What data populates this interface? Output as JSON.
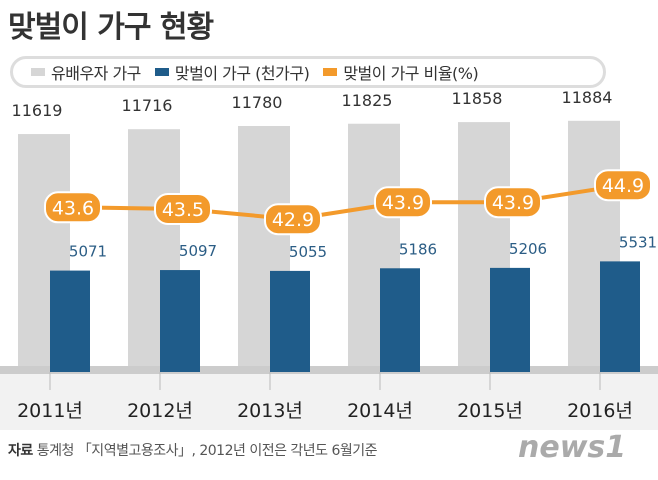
{
  "title": "맞벌이 가구 현황",
  "legend": [
    {
      "label": "유배우자 가구",
      "color": "#d6d6d6"
    },
    {
      "label": "맞벌이 가구 (천가구)",
      "color": "#1f5c8a"
    },
    {
      "label": "맞벌이 가구 비율(%)",
      "color": "#f39a2b"
    }
  ],
  "chart_data": {
    "type": "bar+line",
    "categories": [
      "2011년",
      "2012년",
      "2013년",
      "2014년",
      "2015년",
      "2016년"
    ],
    "series": [
      {
        "name": "유배우자 가구",
        "type": "bar",
        "values": [
          11619,
          11716,
          11780,
          11825,
          11858,
          11884
        ],
        "color": "#d6d6d6"
      },
      {
        "name": "맞벌이 가구 (천가구)",
        "type": "bar",
        "values": [
          5071,
          5097,
          5055,
          5186,
          5206,
          5531
        ],
        "color": "#1f5c8a"
      },
      {
        "name": "맞벌이 가구 비율(%)",
        "type": "line",
        "values": [
          43.6,
          43.5,
          42.9,
          43.9,
          43.9,
          44.9
        ],
        "color": "#f39a2b"
      }
    ],
    "legend_position": "top",
    "grid": false
  },
  "source": {
    "label": "자료",
    "text": "통계청 「지역별고용조사」, 2012년 이전은 각년도 6월기준"
  },
  "logo": "news1"
}
